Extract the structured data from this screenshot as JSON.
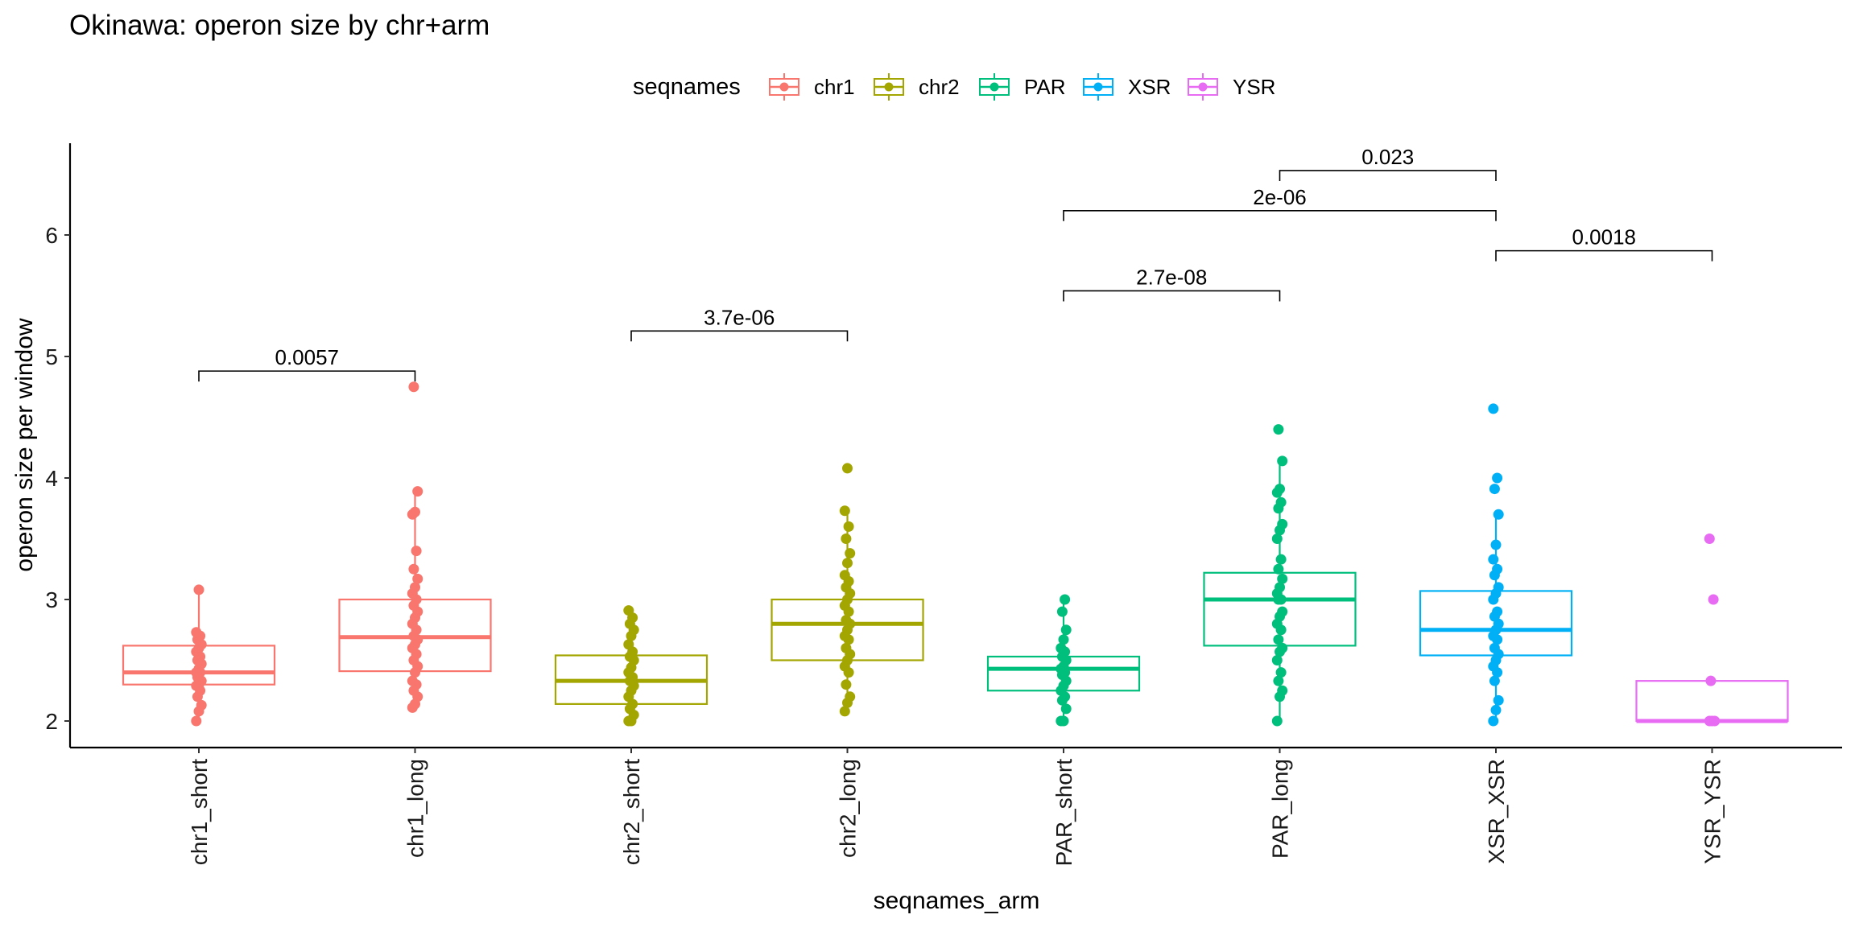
{
  "chart_data": {
    "type": "boxplot",
    "title": "Okinawa: operon size by chr+arm",
    "xlabel": "seqnames_arm",
    "ylabel": "operon size per window",
    "ylim": [
      1.78,
      6.78
    ],
    "yticks": [
      2,
      3,
      4,
      5,
      6
    ],
    "grid": false,
    "legend": {
      "title": "seqnames",
      "position": "top",
      "entries": [
        {
          "label": "chr1",
          "color": "#F8766D"
        },
        {
          "label": "chr2",
          "color": "#A3A500"
        },
        {
          "label": "PAR",
          "color": "#00BF7D"
        },
        {
          "label": "XSR",
          "color": "#00B0F6"
        },
        {
          "label": "YSR",
          "color": "#E76BF3"
        }
      ]
    },
    "categories": [
      "chr1_short",
      "chr1_long",
      "chr2_short",
      "chr2_long",
      "PAR_short",
      "PAR_long",
      "XSR_XSR",
      "YSR_YSR"
    ],
    "boxes": [
      {
        "category": "chr1_short",
        "group": "chr1",
        "q1": 2.3,
        "median": 2.4,
        "q3": 2.62,
        "whisker_low": 2.0,
        "whisker_high": 3.08,
        "points": [
          2.0,
          2.08,
          2.13,
          2.2,
          2.25,
          2.29,
          2.3,
          2.33,
          2.36,
          2.4,
          2.4,
          2.43,
          2.47,
          2.5,
          2.53,
          2.57,
          2.6,
          2.63,
          2.67,
          2.7,
          2.73,
          3.08
        ]
      },
      {
        "category": "chr1_long",
        "group": "chr1",
        "q1": 2.41,
        "median": 2.69,
        "q3": 3.0,
        "whisker_low": 2.11,
        "whisker_high": 3.89,
        "points": [
          2.11,
          2.14,
          2.2,
          2.25,
          2.3,
          2.33,
          2.4,
          2.45,
          2.5,
          2.55,
          2.6,
          2.63,
          2.67,
          2.7,
          2.75,
          2.8,
          2.85,
          2.9,
          2.95,
          3.0,
          3.05,
          3.1,
          3.17,
          3.25,
          3.4,
          3.7,
          3.72,
          3.89,
          4.75
        ]
      },
      {
        "category": "chr2_short",
        "group": "chr2",
        "q1": 2.14,
        "median": 2.33,
        "q3": 2.54,
        "whisker_low": 2.0,
        "whisker_high": 2.91,
        "points": [
          2.0,
          2.0,
          2.05,
          2.1,
          2.14,
          2.2,
          2.25,
          2.29,
          2.33,
          2.36,
          2.4,
          2.44,
          2.5,
          2.53,
          2.57,
          2.63,
          2.7,
          2.75,
          2.8,
          2.85,
          2.91
        ]
      },
      {
        "category": "chr2_long",
        "group": "chr2",
        "q1": 2.5,
        "median": 2.8,
        "q3": 3.0,
        "whisker_low": 2.08,
        "whisker_high": 3.73,
        "points": [
          2.08,
          2.15,
          2.2,
          2.3,
          2.4,
          2.45,
          2.5,
          2.55,
          2.6,
          2.67,
          2.7,
          2.75,
          2.8,
          2.83,
          2.9,
          2.95,
          3.0,
          3.05,
          3.1,
          3.15,
          3.2,
          3.3,
          3.38,
          3.5,
          3.6,
          3.73,
          4.08
        ]
      },
      {
        "category": "PAR_short",
        "group": "PAR",
        "q1": 2.25,
        "median": 2.43,
        "q3": 2.53,
        "whisker_low": 2.0,
        "whisker_high": 3.0,
        "points": [
          2.0,
          2.0,
          2.1,
          2.17,
          2.2,
          2.25,
          2.29,
          2.33,
          2.38,
          2.4,
          2.43,
          2.45,
          2.5,
          2.53,
          2.57,
          2.6,
          2.67,
          2.75,
          2.9,
          3.0
        ]
      },
      {
        "category": "PAR_long",
        "group": "PAR",
        "q1": 2.62,
        "median": 3.0,
        "q3": 3.22,
        "whisker_low": 2.0,
        "whisker_high": 4.14,
        "points": [
          2.0,
          2.2,
          2.25,
          2.33,
          2.4,
          2.5,
          2.57,
          2.6,
          2.67,
          2.75,
          2.8,
          2.86,
          2.9,
          3.0,
          3.0,
          3.05,
          3.1,
          3.17,
          3.25,
          3.33,
          3.5,
          3.57,
          3.62,
          3.75,
          3.8,
          3.88,
          3.91,
          4.14,
          4.4
        ]
      },
      {
        "category": "XSR_XSR",
        "group": "XSR",
        "q1": 2.54,
        "median": 2.75,
        "q3": 3.07,
        "whisker_low": 2.0,
        "whisker_high": 3.7,
        "points": [
          2.0,
          2.09,
          2.17,
          2.33,
          2.4,
          2.45,
          2.5,
          2.55,
          2.6,
          2.67,
          2.7,
          2.75,
          2.8,
          2.86,
          2.9,
          3.0,
          3.05,
          3.1,
          3.2,
          3.25,
          3.33,
          3.45,
          3.7,
          3.91,
          4.0,
          4.57
        ]
      },
      {
        "category": "YSR_YSR",
        "group": "YSR",
        "q1": 2.0,
        "median": 2.0,
        "q3": 2.33,
        "whisker_low": 2.0,
        "whisker_high": 2.33,
        "points": [
          2.0,
          2.0,
          2.0,
          2.33,
          3.0,
          3.5
        ]
      }
    ],
    "comparisons": [
      {
        "from": "chr1_short",
        "to": "chr1_long",
        "label": "0.0057",
        "y": 4.88
      },
      {
        "from": "chr2_short",
        "to": "chr2_long",
        "label": "3.7e-06",
        "y": 5.21
      },
      {
        "from": "PAR_short",
        "to": "PAR_long",
        "label": "2.7e-08",
        "y": 5.54
      },
      {
        "from": "XSR_XSR",
        "to": "YSR_YSR",
        "label": "0.0018",
        "y": 5.87
      },
      {
        "from": "PAR_short",
        "to": "XSR_XSR",
        "label": "2e-06",
        "y": 6.2
      },
      {
        "from": "PAR_long",
        "to": "XSR_XSR",
        "label": "0.023",
        "y": 6.53
      }
    ]
  }
}
